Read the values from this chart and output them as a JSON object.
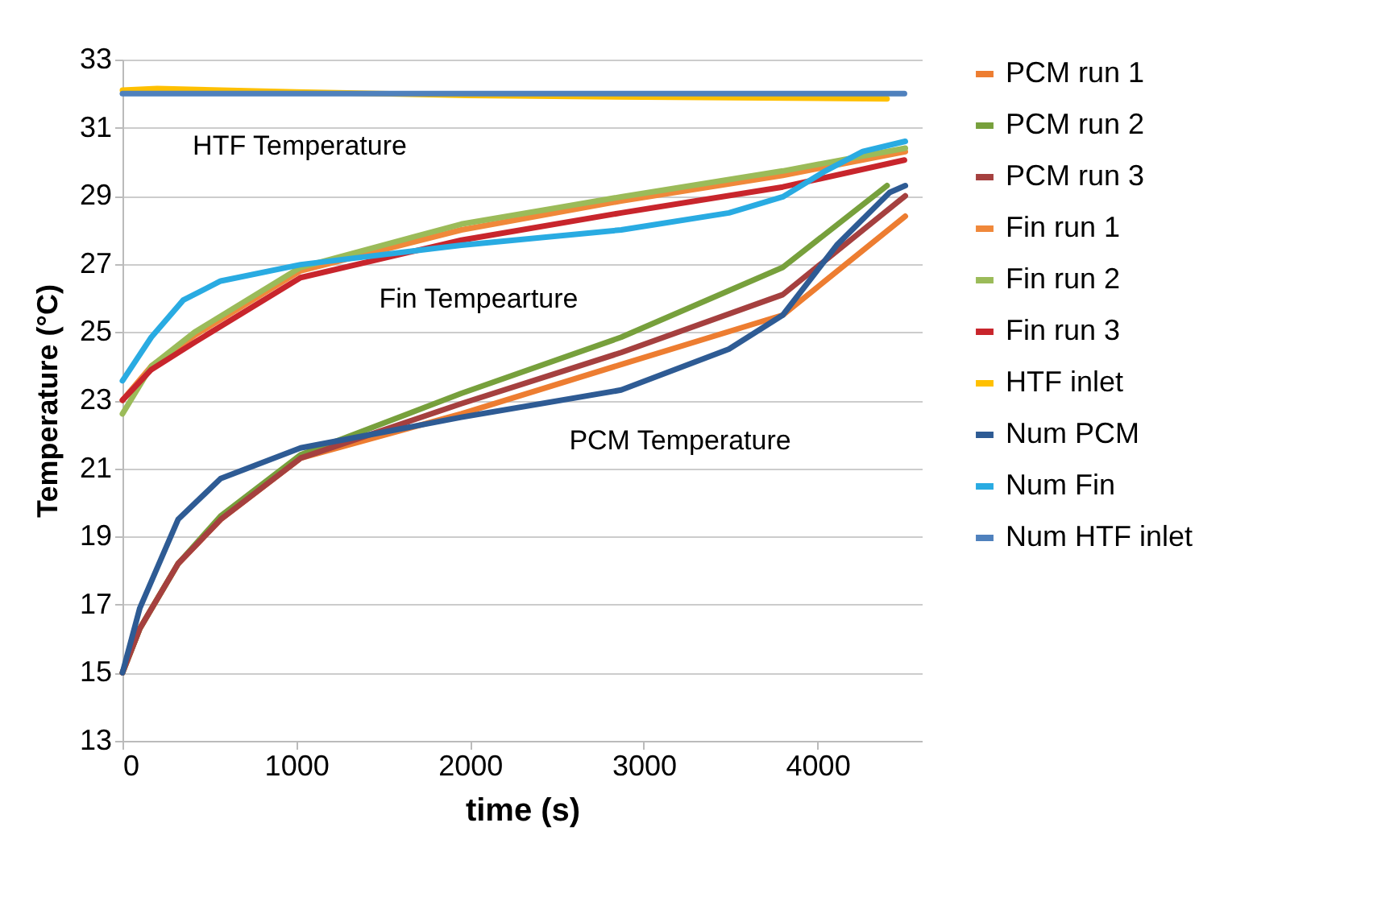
{
  "chart_data": {
    "type": "line",
    "xlabel": "time (s)",
    "ylabel": "Temperature (°C)",
    "xlim": [
      0,
      4600
    ],
    "xticks": [
      0,
      1000,
      2000,
      3000,
      4000
    ],
    "ylim": [
      13,
      33
    ],
    "yticks": [
      13,
      15,
      17,
      19,
      21,
      23,
      25,
      27,
      29,
      31,
      33
    ],
    "grid": "y",
    "legend": "right",
    "annotations": [
      "HTF Temperature",
      "Fin Tempearture",
      "PCM Temperature"
    ],
    "series": [
      {
        "name": "PCM run 1",
        "color": "#ed7d31",
        "x": [
          0,
          100,
          320,
          565,
          1025,
          1950,
          2870,
          3800,
          4505
        ],
        "values": [
          15.0,
          16.3,
          18.2,
          19.5,
          21.3,
          22.6,
          24.05,
          25.5,
          28.4
        ]
      },
      {
        "name": "PCM run 2",
        "color": "#77a03c",
        "x": [
          0,
          100,
          320,
          565,
          1025,
          1950,
          2870,
          3800,
          4350,
          4400
        ],
        "values": [
          15.0,
          16.3,
          18.2,
          19.6,
          21.4,
          23.2,
          24.85,
          26.9,
          29.1,
          29.3
        ]
      },
      {
        "name": "PCM run 3",
        "color": "#a5403f",
        "x": [
          0,
          100,
          320,
          565,
          1025,
          1950,
          2870,
          3800,
          4505
        ],
        "values": [
          15.0,
          16.3,
          18.2,
          19.5,
          21.3,
          22.9,
          24.4,
          26.1,
          29.0
        ]
      },
      {
        "name": "Fin run 1",
        "color": "#f0883a",
        "x": [
          0,
          166,
          415,
          1025,
          1950,
          2870,
          3800,
          4505
        ],
        "values": [
          23.0,
          24.0,
          24.9,
          26.8,
          28.0,
          28.85,
          29.6,
          30.3
        ]
      },
      {
        "name": "Fin run 2",
        "color": "#9bbb59",
        "x": [
          0,
          166,
          415,
          1025,
          1950,
          2870,
          3800,
          4505
        ],
        "values": [
          22.6,
          24.0,
          25.0,
          26.9,
          28.17,
          28.97,
          29.73,
          30.4
        ]
      },
      {
        "name": "Fin run 3",
        "color": "#c8252c",
        "x": [
          0,
          166,
          415,
          1025,
          1950,
          2870,
          3800,
          4500
        ],
        "values": [
          23.0,
          23.9,
          24.7,
          26.6,
          27.7,
          28.5,
          29.26,
          30.05
        ]
      },
      {
        "name": "HTF inlet",
        "color": "#ffc000",
        "x": [
          0,
          200,
          1000,
          2000,
          3000,
          4400
        ],
        "values": [
          32.1,
          32.15,
          32.05,
          31.95,
          31.9,
          31.85
        ]
      },
      {
        "name": "Num PCM",
        "color": "#2e5b94",
        "x": [
          0,
          100,
          320,
          565,
          1025,
          1950,
          2870,
          3490,
          3800,
          4110,
          4415,
          4505
        ],
        "values": [
          15.0,
          16.9,
          19.5,
          20.7,
          21.6,
          22.5,
          23.3,
          24.5,
          25.5,
          27.55,
          29.1,
          29.3
        ]
      },
      {
        "name": "Num Fin",
        "color": "#29abe2",
        "x": [
          0,
          166,
          350,
          565,
          1025,
          1950,
          2870,
          3490,
          3800,
          4045,
          4260,
          4505
        ],
        "values": [
          23.57,
          24.85,
          25.94,
          26.5,
          26.98,
          27.55,
          28.0,
          28.5,
          28.97,
          29.73,
          30.3,
          30.6
        ]
      },
      {
        "name": "Num HTF inlet",
        "color": "#4f81bd",
        "x": [
          0,
          4500
        ],
        "values": [
          32.0,
          32.0
        ]
      }
    ]
  }
}
